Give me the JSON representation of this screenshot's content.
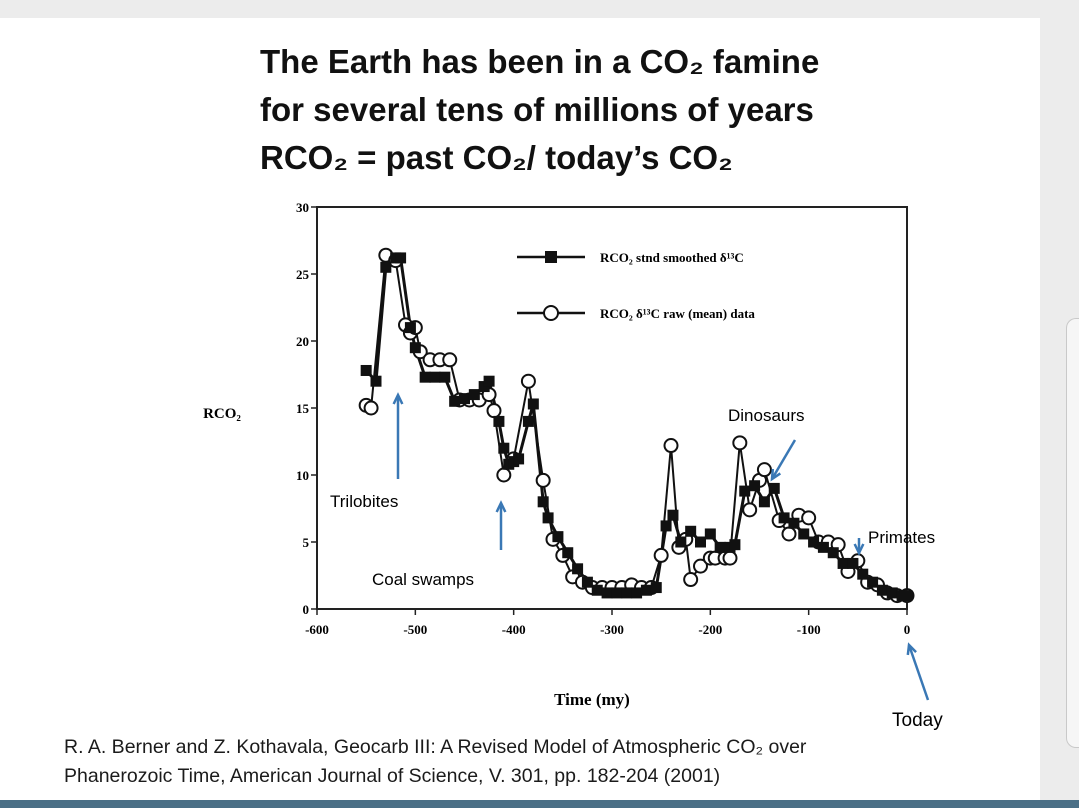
{
  "title_lines": [
    "The Earth has been in a CO₂ famine",
    "for several tens of millions of years",
    "RCO₂ = past CO₂/ today’s CO₂"
  ],
  "citation_lines": [
    "R. A. Berner and Z. Kothavala, Geocarb III: A Revised Model of Atmospheric CO₂ over",
    "Phanerozoic Time,  American Journal of Science, V. 301, pp. 182-204 (2001)"
  ],
  "colors": {
    "marker": "#111111",
    "arrow": "#3a78b5",
    "axis": "#222222"
  },
  "chart_data": {
    "type": "line",
    "xlabel": "Time  (my)",
    "ylabel": "RCO₂",
    "xlim": [
      -600,
      0
    ],
    "ylim": [
      0,
      30
    ],
    "x_ticks": [
      "-600",
      "-500",
      "-400",
      "-300",
      "-200",
      "-100",
      "0"
    ],
    "y_ticks": [
      "0",
      "5",
      "10",
      "15",
      "20",
      "25",
      "30"
    ],
    "grid": false,
    "legend_position": "top-right",
    "series": [
      {
        "name": "RCO₂ stnd smoothed δ¹³C",
        "marker": "filled-square",
        "points": [
          [
            -550,
            17.8
          ],
          [
            -540,
            17.0
          ],
          [
            -530,
            25.5
          ],
          [
            -520,
            26.2
          ],
          [
            -515,
            26.2
          ],
          [
            -505,
            21.0
          ],
          [
            -500,
            19.5
          ],
          [
            -490,
            17.3
          ],
          [
            -480,
            17.3
          ],
          [
            -470,
            17.3
          ],
          [
            -460,
            15.5
          ],
          [
            -450,
            15.7
          ],
          [
            -440,
            16.0
          ],
          [
            -430,
            16.6
          ],
          [
            -425,
            17.0
          ],
          [
            -415,
            14.0
          ],
          [
            -410,
            12.0
          ],
          [
            -405,
            10.8
          ],
          [
            -400,
            11.0
          ],
          [
            -395,
            11.2
          ],
          [
            -385,
            14.0
          ],
          [
            -380,
            15.3
          ],
          [
            -370,
            8.0
          ],
          [
            -365,
            6.8
          ],
          [
            -355,
            5.4
          ],
          [
            -345,
            4.2
          ],
          [
            -335,
            3.0
          ],
          [
            -325,
            2.0
          ],
          [
            -315,
            1.4
          ],
          [
            -305,
            1.2
          ],
          [
            -295,
            1.2
          ],
          [
            -285,
            1.2
          ],
          [
            -275,
            1.2
          ],
          [
            -265,
            1.4
          ],
          [
            -255,
            1.6
          ],
          [
            -245,
            6.2
          ],
          [
            -238,
            7.0
          ],
          [
            -230,
            5.0
          ],
          [
            -220,
            5.8
          ],
          [
            -210,
            5.0
          ],
          [
            -200,
            5.6
          ],
          [
            -190,
            4.6
          ],
          [
            -180,
            4.6
          ],
          [
            -175,
            4.8
          ],
          [
            -165,
            8.8
          ],
          [
            -155,
            9.2
          ],
          [
            -145,
            8.0
          ],
          [
            -135,
            9.0
          ],
          [
            -125,
            6.8
          ],
          [
            -115,
            6.4
          ],
          [
            -105,
            5.6
          ],
          [
            -95,
            5.0
          ],
          [
            -85,
            4.6
          ],
          [
            -75,
            4.2
          ],
          [
            -65,
            3.4
          ],
          [
            -55,
            3.4
          ],
          [
            -45,
            2.6
          ],
          [
            -35,
            2.0
          ],
          [
            -25,
            1.4
          ],
          [
            -15,
            1.2
          ],
          [
            -5,
            1.0
          ],
          [
            0,
            1.0
          ]
        ]
      },
      {
        "name": "RCO₂ δ¹³C raw (mean) data",
        "marker": "open-circle",
        "points": [
          [
            -550,
            15.2
          ],
          [
            -545,
            15.0
          ],
          [
            -530,
            26.4
          ],
          [
            -520,
            26.0
          ],
          [
            -510,
            21.2
          ],
          [
            -505,
            20.6
          ],
          [
            -500,
            21.0
          ],
          [
            -495,
            19.2
          ],
          [
            -485,
            18.6
          ],
          [
            -475,
            18.6
          ],
          [
            -465,
            18.6
          ],
          [
            -455,
            15.6
          ],
          [
            -445,
            15.6
          ],
          [
            -435,
            15.6
          ],
          [
            -425,
            16.0
          ],
          [
            -420,
            14.8
          ],
          [
            -410,
            10.0
          ],
          [
            -400,
            11.2
          ],
          [
            -385,
            17.0
          ],
          [
            -370,
            9.6
          ],
          [
            -360,
            5.2
          ],
          [
            -350,
            4.0
          ],
          [
            -340,
            2.4
          ],
          [
            -330,
            2.0
          ],
          [
            -320,
            1.6
          ],
          [
            -310,
            1.6
          ],
          [
            -300,
            1.6
          ],
          [
            -290,
            1.6
          ],
          [
            -280,
            1.8
          ],
          [
            -270,
            1.6
          ],
          [
            -260,
            1.6
          ],
          [
            -250,
            4.0
          ],
          [
            -240,
            12.2
          ],
          [
            -232,
            4.6
          ],
          [
            -225,
            5.2
          ],
          [
            -220,
            2.2
          ],
          [
            -210,
            3.2
          ],
          [
            -200,
            3.8
          ],
          [
            -195,
            3.8
          ],
          [
            -185,
            3.8
          ],
          [
            -180,
            3.8
          ],
          [
            -170,
            12.4
          ],
          [
            -160,
            7.4
          ],
          [
            -150,
            9.6
          ],
          [
            -145,
            10.4
          ],
          [
            -130,
            6.6
          ],
          [
            -120,
            5.6
          ],
          [
            -110,
            7.0
          ],
          [
            -100,
            6.8
          ],
          [
            -90,
            5.0
          ],
          [
            -80,
            5.0
          ],
          [
            -70,
            4.8
          ],
          [
            -60,
            2.8
          ],
          [
            -50,
            3.6
          ],
          [
            -40,
            2.0
          ],
          [
            -30,
            1.8
          ],
          [
            -20,
            1.2
          ],
          [
            -10,
            1.0
          ],
          [
            0,
            1.0
          ]
        ]
      }
    ],
    "annotations": [
      {
        "text": "Trilobites",
        "x": -520,
        "y": 13
      },
      {
        "text": "Coal swamps",
        "x": -412,
        "y": 6
      },
      {
        "text": "Dinosaurs",
        "x": -134,
        "y": 10
      },
      {
        "text": "Primates",
        "x": -52,
        "y": 4
      },
      {
        "text": "Today",
        "x": 0,
        "y": -1
      }
    ]
  }
}
